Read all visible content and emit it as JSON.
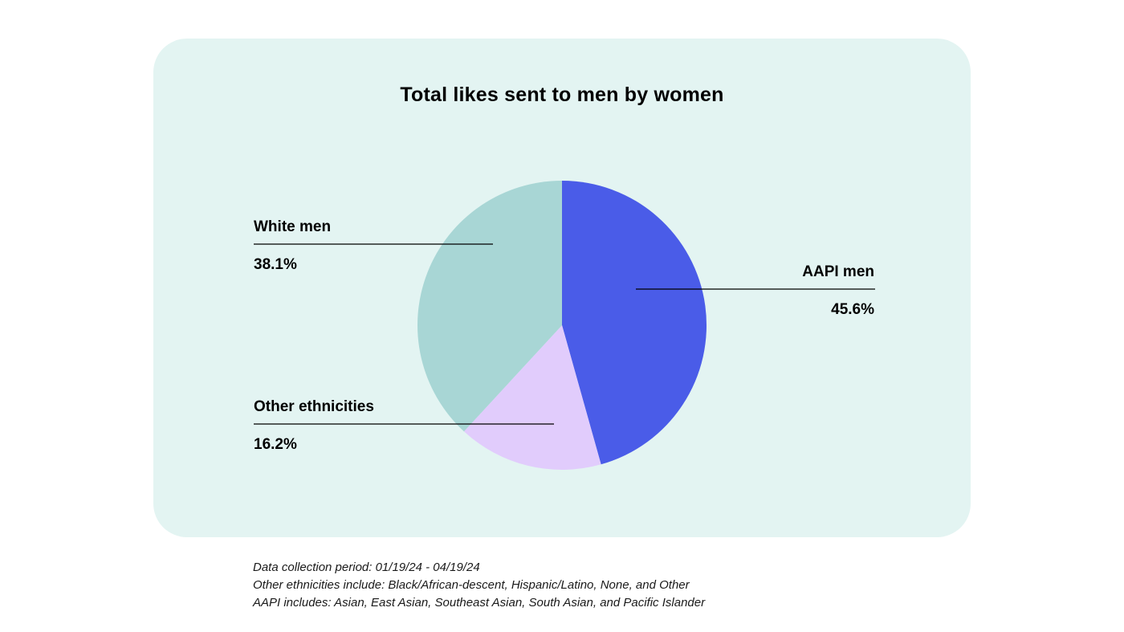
{
  "chart_data": {
    "type": "pie",
    "title": "Total likes sent to men by women",
    "slices": [
      {
        "label": "AAPI men",
        "value": 45.6,
        "display": "45.6%",
        "color": "#4a5ce8"
      },
      {
        "label": "Other ethnicities",
        "value": 16.2,
        "display": "16.2%",
        "color": "#e1ccfc"
      },
      {
        "label": "White men",
        "value": 38.1,
        "display": "38.1%",
        "color": "#a8d6d5"
      }
    ],
    "start_angle": "12 o'clock, clockwise"
  },
  "colors": {
    "card_background": "#e3f4f2",
    "leader_line": "#000000"
  },
  "notes": [
    "Data collection period: 01/19/24 - 04/19/24",
    "Other ethnicities include: Black/African-descent, Hispanic/Latino, None, and Other",
    "AAPI includes: Asian, East Asian, Southeast Asian, South Asian, and Pacific Islander"
  ]
}
